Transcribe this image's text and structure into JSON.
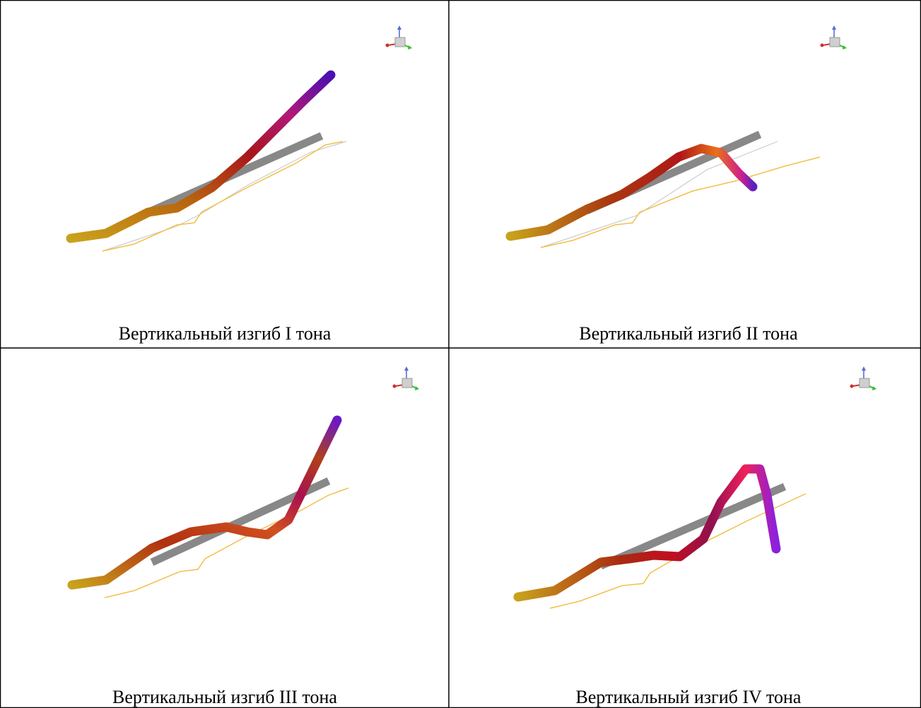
{
  "table": {
    "cells": [
      {
        "caption": "Вертикальный изгиб I тона"
      },
      {
        "caption": "Вертикальный изгиб II тона"
      },
      {
        "caption": "Вертикальный изгиб III тона"
      },
      {
        "caption": "Вертикальный изгиб IV тона"
      }
    ]
  }
}
